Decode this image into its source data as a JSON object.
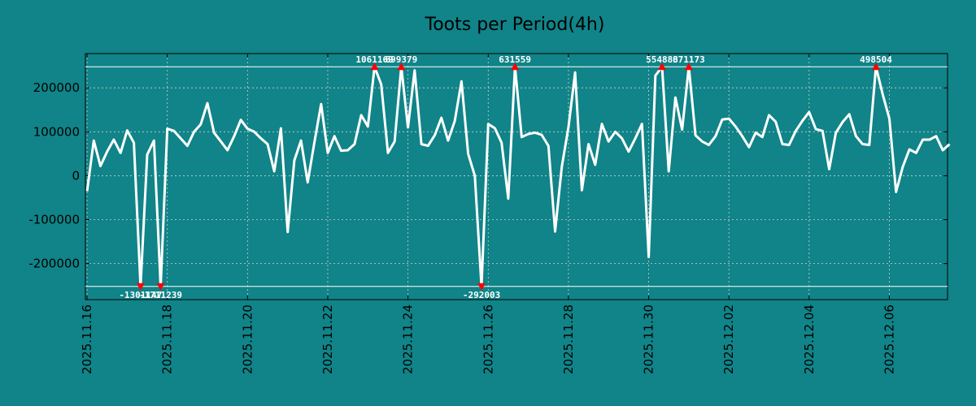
{
  "chart_data": {
    "type": "line",
    "title": "Toots per Period(4h)",
    "xlabel": "",
    "ylabel": "",
    "ylim": [
      -282000,
      278000
    ],
    "xlim": [
      -0.25,
      128.7
    ],
    "grid": true,
    "colors": {
      "background": "#108488",
      "line": "#ffffff",
      "marker": "#ff0000",
      "grid": "#d0d0d0"
    },
    "y_ticks": [
      {
        "value": -200000,
        "label": "-200000"
      },
      {
        "value": -100000,
        "label": "-100000"
      },
      {
        "value": 0,
        "label": "0"
      },
      {
        "value": 100000,
        "label": "100000"
      },
      {
        "value": 200000,
        "label": "200000"
      }
    ],
    "x_ticks": [
      {
        "index": 0,
        "label": "2025.11.16"
      },
      {
        "index": 12,
        "label": "2025.11.18"
      },
      {
        "index": 24,
        "label": "2025.11.20"
      },
      {
        "index": 36,
        "label": "2025.11.22"
      },
      {
        "index": 48,
        "label": "2025.11.24"
      },
      {
        "index": 60,
        "label": "2025.11.26"
      },
      {
        "index": 72,
        "label": "2025.11.28"
      },
      {
        "index": 84,
        "label": "2025.11.30"
      },
      {
        "index": 96,
        "label": "2025.12.02"
      },
      {
        "index": 108,
        "label": "2025.12.04"
      },
      {
        "index": 120,
        "label": "2025.12.06"
      }
    ],
    "clip": {
      "upper": 248000,
      "lower": -252000
    },
    "values": [
      -35000,
      80000,
      22000,
      55000,
      82000,
      52000,
      103000,
      75000,
      -252000,
      48000,
      80000,
      -252000,
      107000,
      102000,
      85000,
      68000,
      100000,
      117000,
      165000,
      98000,
      78000,
      58000,
      90000,
      127000,
      107000,
      100000,
      85000,
      72000,
      10000,
      108000,
      -128000,
      35000,
      80000,
      -15000,
      75000,
      163000,
      52000,
      90000,
      57000,
      58000,
      72000,
      138000,
      112000,
      248000,
      208000,
      52000,
      78000,
      248000,
      110000,
      240000,
      72000,
      68000,
      92000,
      132000,
      80000,
      125000,
      215000,
      50000,
      0,
      -252000,
      118000,
      108000,
      75000,
      -52000,
      248000,
      88000,
      95000,
      98000,
      93000,
      68000,
      -127000,
      20000,
      110000,
      235000,
      -33000,
      72000,
      25000,
      118000,
      78000,
      100000,
      85000,
      55000,
      85000,
      118000,
      -185000,
      228000,
      248000,
      10000,
      178000,
      105000,
      248000,
      92000,
      78000,
      70000,
      90000,
      128000,
      130000,
      112000,
      90000,
      65000,
      98000,
      88000,
      138000,
      123000,
      72000,
      70000,
      102000,
      125000,
      145000,
      106000,
      102000,
      15000,
      98000,
      122000,
      140000,
      90000,
      72000,
      70000,
      248000,
      185000,
      130000,
      -37000,
      20000,
      60000,
      52000,
      82000,
      82000,
      90000,
      58000,
      72000
    ],
    "annotations": [
      {
        "index": 8,
        "label": "-1301147",
        "side": "bottom"
      },
      {
        "index": 11,
        "label": "-1711239",
        "side": "bottom"
      },
      {
        "index": 43,
        "label": "1061169",
        "side": "top"
      },
      {
        "index": 47,
        "label": "699379",
        "side": "top"
      },
      {
        "index": 59,
        "label": "-292003",
        "side": "bottom"
      },
      {
        "index": 64,
        "label": "631559",
        "side": "top"
      },
      {
        "index": 86,
        "label": "554883",
        "side": "top"
      },
      {
        "index": 90,
        "label": "671173",
        "side": "top"
      },
      {
        "index": 118,
        "label": "498504",
        "side": "top"
      }
    ]
  }
}
